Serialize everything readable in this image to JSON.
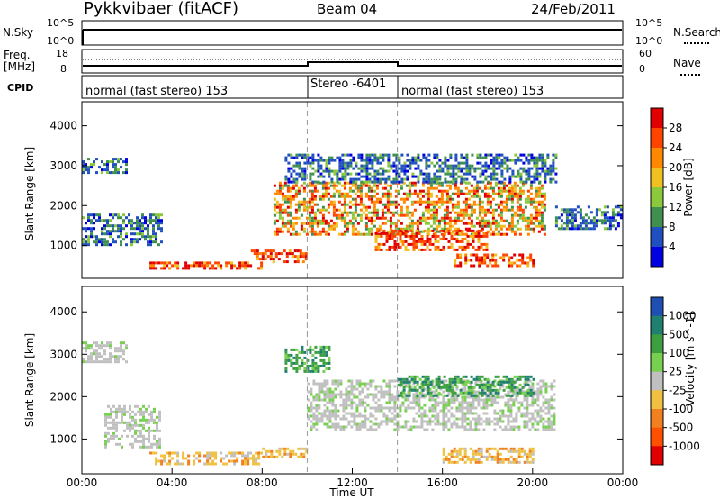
{
  "header": {
    "radar": "Pykkvibaer (fitACF)",
    "beam": "Beam 04",
    "date": "24/Feb/2011"
  },
  "panels": {
    "nsky": {
      "left_label": "N.Sky",
      "tick_top": "10^5",
      "tick_bottom": "10^0",
      "right_label": "N.Search",
      "right_tick_top": "10^5",
      "right_tick_bottom": "10^0"
    },
    "freq": {
      "left_label_1": "Freq.",
      "left_label_2": "[MHz]",
      "tick_top": "18",
      "tick_bottom": "8",
      "right_label": "Nave",
      "right_tick_top": "60",
      "right_tick_bottom": "0"
    },
    "cpid": {
      "label": "CPID",
      "segments": [
        {
          "label": "normal (fast stereo) 153",
          "start": 0,
          "end": 10
        },
        {
          "label": "Stereo -6401",
          "start": 10,
          "end": 14
        },
        {
          "label": "normal (fast stereo) 153",
          "start": 14,
          "end": 24
        }
      ]
    }
  },
  "colorbars": {
    "power": {
      "title": "Power [dB]",
      "ticks": [
        "28",
        "24",
        "20",
        "16",
        "12",
        "8",
        "4"
      ],
      "colors": [
        "#e00000",
        "#ff4400",
        "#ff8800",
        "#f0c020",
        "#8cc83c",
        "#3f9050",
        "#2050c0",
        "#0000e0"
      ]
    },
    "velocity": {
      "title": "Velocity [m s^-1]",
      "ticks": [
        "1000",
        "500",
        "100",
        "25",
        "-25",
        "-100",
        "-500",
        "-1000"
      ],
      "colors": [
        "#1e50b4",
        "#208070",
        "#3ca040",
        "#78d050",
        "#c0c0c0",
        "#f0c040",
        "#f08020",
        "#ff5000",
        "#e00000"
      ]
    }
  },
  "chart_data": [
    {
      "type": "heatmap",
      "title": "Power",
      "ylabel": "Slant Range [km]",
      "xlabel": "Time UT",
      "ylim": [
        180,
        4600
      ],
      "yticks": [
        1000,
        2000,
        3000,
        4000
      ],
      "xlim": [
        0,
        24
      ],
      "xtick_labels": [
        "00:00",
        "04:00",
        "08:00",
        "12:00",
        "16:00",
        "20:00",
        "00:00"
      ],
      "mode_change_times": [
        10,
        14
      ],
      "regions": [
        {
          "t": [
            0,
            3.5
          ],
          "r": [
            1000,
            1800
          ],
          "level": "low"
        },
        {
          "t": [
            0,
            2
          ],
          "r": [
            2800,
            3200
          ],
          "level": "low"
        },
        {
          "t": [
            3,
            8
          ],
          "r": [
            400,
            600
          ],
          "level": "high"
        },
        {
          "t": [
            7.5,
            10
          ],
          "r": [
            600,
            900
          ],
          "level": "high"
        },
        {
          "t": [
            8.5,
            20.5
          ],
          "r": [
            1300,
            2600
          ],
          "level": "medium"
        },
        {
          "t": [
            13,
            18
          ],
          "r": [
            900,
            1400
          ],
          "level": "high"
        },
        {
          "t": [
            16.5,
            20
          ],
          "r": [
            500,
            800
          ],
          "level": "high"
        },
        {
          "t": [
            9,
            21
          ],
          "r": [
            2600,
            3300
          ],
          "level": "low"
        },
        {
          "t": [
            21,
            24
          ],
          "r": [
            1400,
            2000
          ],
          "level": "low"
        }
      ]
    },
    {
      "type": "heatmap",
      "title": "Velocity",
      "ylabel": "Slant Range [km]",
      "xlabel": "Time UT",
      "ylim": [
        180,
        4600
      ],
      "yticks": [
        1000,
        2000,
        3000,
        4000
      ],
      "xlim": [
        0,
        24
      ],
      "xtick_labels": [
        "00:00",
        "04:00",
        "08:00",
        "12:00",
        "16:00",
        "20:00",
        "00:00"
      ],
      "mode_change_times": [
        10,
        14
      ],
      "regions": [
        {
          "t": [
            0,
            2
          ],
          "r": [
            2800,
            3300
          ],
          "level": "-25 to 25"
        },
        {
          "t": [
            1,
            3.5
          ],
          "r": [
            800,
            1800
          ],
          "level": "-25 to 25"
        },
        {
          "t": [
            3,
            8
          ],
          "r": [
            400,
            700
          ],
          "level": "-100 to -25"
        },
        {
          "t": [
            8,
            10
          ],
          "r": [
            600,
            800
          ],
          "level": "-100 to -25"
        },
        {
          "t": [
            10,
            21
          ],
          "r": [
            1200,
            2400
          ],
          "level": "-25 to 25"
        },
        {
          "t": [
            14,
            20
          ],
          "r": [
            2000,
            2500
          ],
          "level": "25 to 500"
        },
        {
          "t": [
            9,
            11
          ],
          "r": [
            2600,
            3200
          ],
          "level": "100 to 500"
        },
        {
          "t": [
            16,
            20
          ],
          "r": [
            450,
            800
          ],
          "level": "-100 to -25"
        }
      ]
    }
  ]
}
